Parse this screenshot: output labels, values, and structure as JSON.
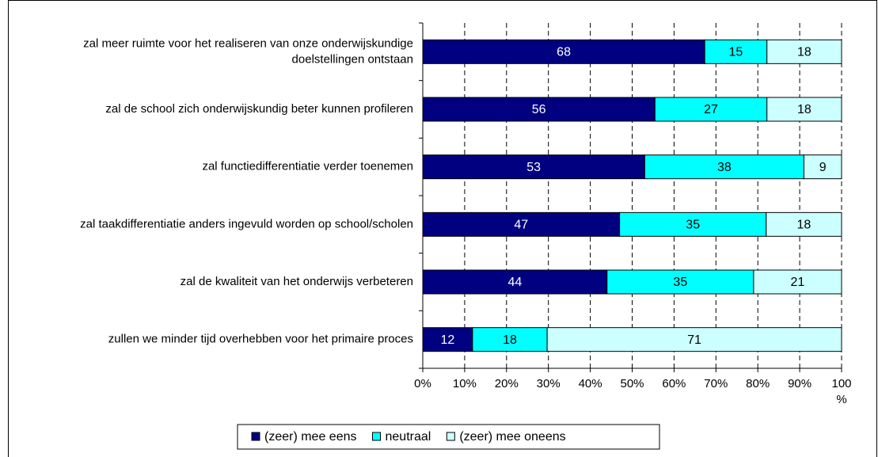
{
  "chart_data": {
    "type": "bar",
    "orientation": "horizontal",
    "stacking": "percent",
    "categories": [
      "zal meer ruimte voor het realiseren van onze onderwijskundige doelstellingen ontstaan",
      "zal de school zich onderwijskundig beter kunnen profileren",
      "zal functiedifferentiatie verder toenemen",
      "zal taakdifferentiatie anders ingevuld worden op school/scholen",
      "zal de kwaliteit van het onderwijs verbeteren",
      "zullen we minder tijd overhebben voor het primaire proces"
    ],
    "series": [
      {
        "name": "(zeer) mee eens",
        "color": "#000080",
        "label_color": "#ffffff",
        "values": [
          68,
          56,
          53,
          47,
          44,
          12
        ]
      },
      {
        "name": "neutraal",
        "color": "#00ffff",
        "label_color": "#000000",
        "values": [
          15,
          27,
          38,
          35,
          35,
          18
        ]
      },
      {
        "name": "(zeer) mee oneens",
        "color": "#ccffff",
        "label_color": "#000000",
        "values": [
          18,
          18,
          9,
          18,
          21,
          71
        ]
      }
    ],
    "xlim": [
      0,
      100
    ],
    "xticks": [
      {
        "value": 0,
        "label": "0%"
      },
      {
        "value": 10,
        "label": "10%"
      },
      {
        "value": 20,
        "label": "20%"
      },
      {
        "value": 30,
        "label": "30%"
      },
      {
        "value": 40,
        "label": "40%"
      },
      {
        "value": 50,
        "label": "50%"
      },
      {
        "value": 60,
        "label": "60%"
      },
      {
        "value": 70,
        "label": "70%"
      },
      {
        "value": 80,
        "label": "80%"
      },
      {
        "value": 90,
        "label": "90%"
      },
      {
        "value": 100,
        "label": "100 %"
      }
    ],
    "grid": true,
    "legend": "bottom"
  }
}
